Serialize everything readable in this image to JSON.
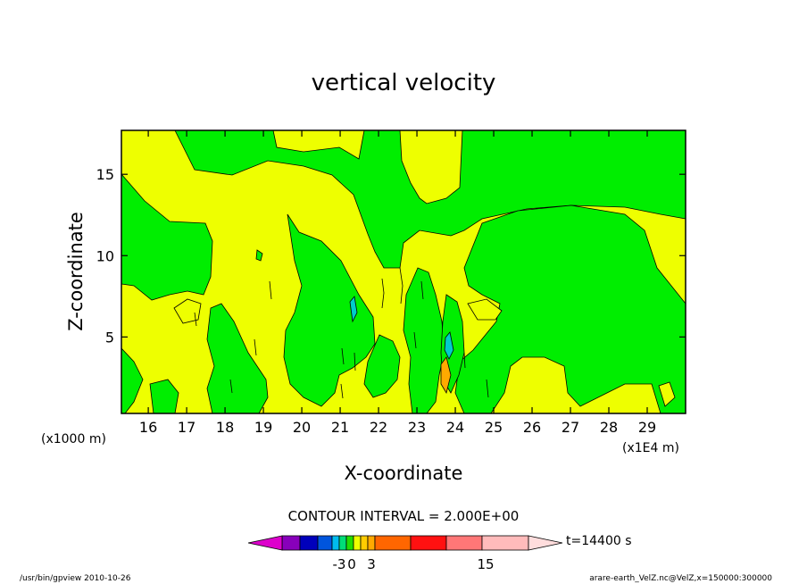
{
  "chart_data": {
    "type": "heatmap",
    "title": "vertical velocity",
    "xlabel": "X-coordinate",
    "ylabel": "Z-coordinate",
    "x_units_left": "(x1000 m)",
    "x_units_right": "(x1E4 m)",
    "xlim": [
      15.3,
      30.0
    ],
    "ylim": [
      0.3,
      17.7
    ],
    "x_ticks": [
      16,
      17,
      18,
      19,
      20,
      21,
      22,
      23,
      24,
      25,
      26,
      27,
      28,
      29
    ],
    "y_ticks": [
      5,
      10,
      15
    ],
    "contour_interval": "CONTOUR INTERVAL = 2.000E+00",
    "time_label": "t=14400 s",
    "colorbar": {
      "labels": [
        {
          "text": "-3",
          "value": -3
        },
        {
          "text": "0",
          "value": 0
        },
        {
          "text": "3",
          "value": 3
        },
        {
          "text": "15",
          "value": 15
        }
      ],
      "colors": [
        "#dd00cc",
        "#8800bb",
        "#0000bb",
        "#0055dd",
        "#00bbee",
        "#00dd77",
        "#22dd00",
        "#eeff00",
        "#ffcc00",
        "#ffaa00",
        "#ff6600",
        "#ff1111",
        "#ff7777",
        "#ffbbbb",
        "#ffdddd"
      ]
    },
    "field_colors": {
      "positive_small": "#eeff00",
      "negative_small": "#00ee00",
      "positive_medium": "#ffaa00",
      "negative_medium": "#00cccc"
    }
  },
  "footer": {
    "left": "/usr/bin/gpview  2010-10-26",
    "right": "arare-earth_VelZ.nc@VelZ,x=150000:300000"
  }
}
